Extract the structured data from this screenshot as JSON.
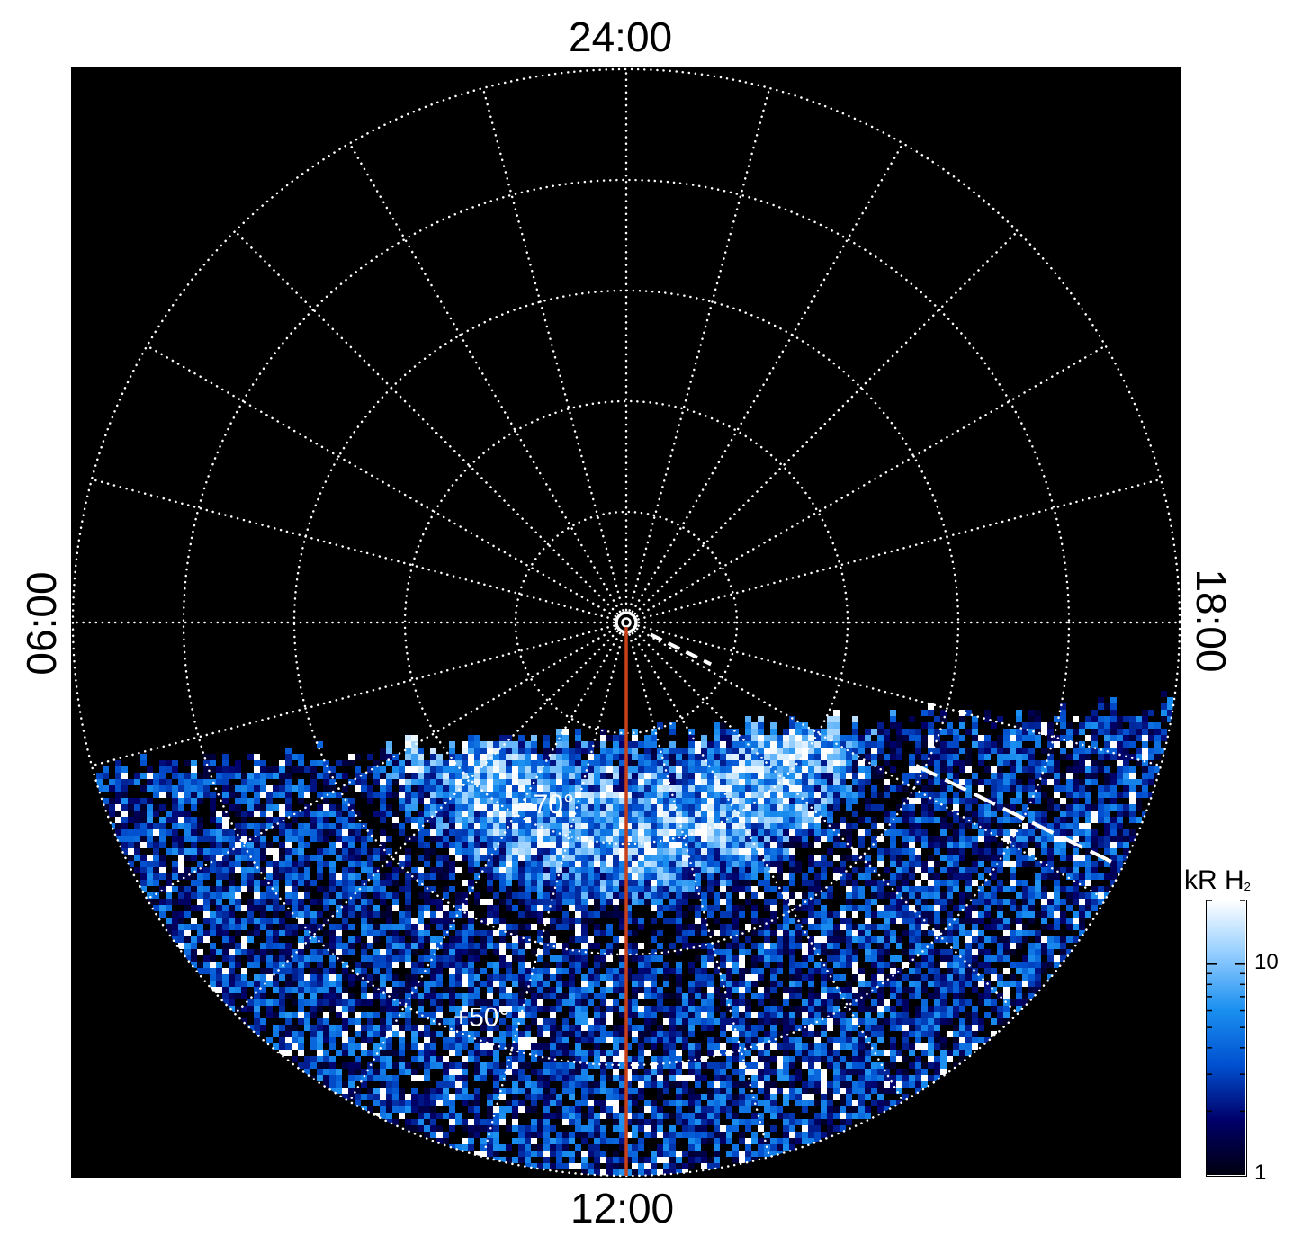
{
  "chart_data": {
    "type": "heatmap",
    "projection": "polar (north-pole view, local time around, latitude radial)",
    "local_time_labels": {
      "top": "24:00",
      "bottom": "12:00",
      "left": "06:00",
      "right": "18:00"
    },
    "latitude_labels": [
      "+70°",
      "+50°"
    ],
    "latitude_circles_deg": [
      90,
      80,
      70,
      60,
      50,
      40
    ],
    "meridian_spacing_hours": 1,
    "marked_meridian_hour": 12,
    "dashed_meridian_hour": 16.25,
    "colorbar": {
      "title": "kR H",
      "title_subscript": "2",
      "scale": "log",
      "range": [
        1,
        20
      ],
      "tick_labels": [
        "1",
        "10"
      ],
      "colors": [
        "#000010",
        "#00006a",
        "#0050d0",
        "#1a8ff0",
        "#90ccff",
        "#ffffff"
      ]
    },
    "grid": true,
    "colors": {
      "background": "#000000",
      "grid": "#ffffff",
      "marker_line": "#c8401a"
    }
  }
}
